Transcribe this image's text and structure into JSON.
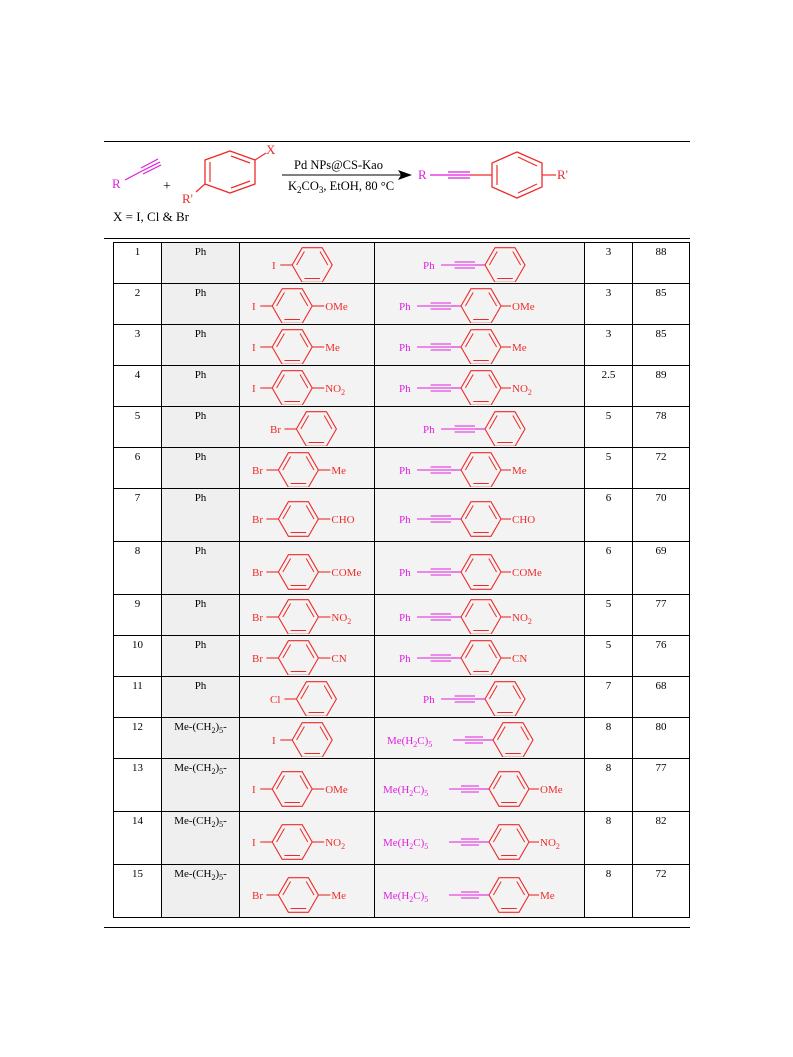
{
  "scheme": {
    "alkyne_label": "R",
    "plus": "+",
    "aryl_substituent": "R'",
    "halide_label": "X",
    "catalyst": "Pd NPs@CS-Kao",
    "conditions": {
      "base_prefix": "K",
      "base_sub1": "2",
      "base_mid": "CO",
      "base_sub2": "3",
      "rest": ", EtOH, 80 °C"
    },
    "product_r": "R",
    "product_r_prime": "R'",
    "x_definition": "X = I, Cl & Br"
  },
  "colors": {
    "red": "#ee2b2b",
    "magenta": "#e01fe0",
    "grey_cell": "#efefef"
  },
  "rows": [
    {
      "entry": "1",
      "alkyne": "Ph",
      "alkyne_sub": "",
      "alkyne_tail": "",
      "halogen": "I",
      "para": "",
      "para_sub": "",
      "prod_r": "Ph",
      "prod_sub": "",
      "prod_r_tail": "",
      "prod_para": "",
      "prod_para_sub": "",
      "time": "3",
      "yield": "88"
    },
    {
      "entry": "2",
      "alkyne": "Ph",
      "alkyne_sub": "",
      "alkyne_tail": "",
      "halogen": "I",
      "para": "OMe",
      "para_sub": "",
      "prod_r": "Ph",
      "prod_sub": "",
      "prod_r_tail": "",
      "prod_para": "OMe",
      "prod_para_sub": "",
      "time": "3",
      "yield": "85"
    },
    {
      "entry": "3",
      "alkyne": "Ph",
      "alkyne_sub": "",
      "alkyne_tail": "",
      "halogen": "I",
      "para": "Me",
      "para_sub": "",
      "prod_r": "Ph",
      "prod_sub": "",
      "prod_r_tail": "",
      "prod_para": "Me",
      "prod_para_sub": "",
      "time": "3",
      "yield": "85"
    },
    {
      "entry": "4",
      "alkyne": "Ph",
      "alkyne_sub": "",
      "alkyne_tail": "",
      "halogen": "I",
      "para": "NO",
      "para_sub": "2",
      "prod_r": "Ph",
      "prod_sub": "",
      "prod_r_tail": "",
      "prod_para": "NO",
      "prod_para_sub": "2",
      "time": "2.5",
      "yield": "89"
    },
    {
      "entry": "5",
      "alkyne": "Ph",
      "alkyne_sub": "",
      "alkyne_tail": "",
      "halogen": "Br",
      "para": "",
      "para_sub": "",
      "prod_r": "Ph",
      "prod_sub": "",
      "prod_r_tail": "",
      "prod_para": "",
      "prod_para_sub": "",
      "time": "5",
      "yield": "78"
    },
    {
      "entry": "6",
      "alkyne": "Ph",
      "alkyne_sub": "",
      "alkyne_tail": "",
      "halogen": "Br",
      "para": "Me",
      "para_sub": "",
      "prod_r": "Ph",
      "prod_sub": "",
      "prod_r_tail": "",
      "prod_para": "Me",
      "prod_para_sub": "",
      "time": "5",
      "yield": "72"
    },
    {
      "entry": "7",
      "alkyne": "Ph",
      "alkyne_sub": "",
      "alkyne_tail": "",
      "halogen": "Br",
      "para": "CHO",
      "para_sub": "",
      "prod_r": "Ph",
      "prod_sub": "",
      "prod_r_tail": "",
      "prod_para": "CHO",
      "prod_para_sub": "",
      "time": "6",
      "yield": "70"
    },
    {
      "entry": "8",
      "alkyne": "Ph",
      "alkyne_sub": "",
      "alkyne_tail": "",
      "halogen": "Br",
      "para": "COMe",
      "para_sub": "",
      "prod_r": "Ph",
      "prod_sub": "",
      "prod_r_tail": "",
      "prod_para": "COMe",
      "prod_para_sub": "",
      "time": "6",
      "yield": "69"
    },
    {
      "entry": "9",
      "alkyne": "Ph",
      "alkyne_sub": "",
      "alkyne_tail": "",
      "halogen": "Br",
      "para": "NO",
      "para_sub": "2",
      "prod_r": "Ph",
      "prod_sub": "",
      "prod_r_tail": "",
      "prod_para": "NO",
      "prod_para_sub": "2",
      "time": "5",
      "yield": "77"
    },
    {
      "entry": "10",
      "alkyne": "Ph",
      "alkyne_sub": "",
      "alkyne_tail": "",
      "halogen": "Br",
      "para": "CN",
      "para_sub": "",
      "prod_r": "Ph",
      "prod_sub": "",
      "prod_r_tail": "",
      "prod_para": "CN",
      "prod_para_sub": "",
      "time": "5",
      "yield": "76"
    },
    {
      "entry": "11",
      "alkyne": "Ph",
      "alkyne_sub": "",
      "alkyne_tail": "",
      "halogen": "Cl",
      "para": "",
      "para_sub": "",
      "prod_r": "Ph",
      "prod_sub": "",
      "prod_r_tail": "",
      "prod_para": "",
      "prod_para_sub": "",
      "time": "7",
      "yield": "68"
    },
    {
      "entry": "12",
      "alkyne": "Me-(CH",
      "alkyne_sub": "2",
      "alkyne_tail": ")5-",
      "halogen": "I",
      "para": "",
      "para_sub": "",
      "prod_r": "Me(H",
      "prod_sub": "2",
      "prod_r_tail": "C)5",
      "prod_para": "",
      "prod_para_sub": "",
      "time": "8",
      "yield": "80"
    },
    {
      "entry": "13",
      "alkyne": "Me-(CH",
      "alkyne_sub": "2",
      "alkyne_tail": ")5-",
      "halogen": "I",
      "para": "OMe",
      "para_sub": "",
      "prod_r": "Me(H",
      "prod_sub": "2",
      "prod_r_tail": "C)5",
      "prod_para": "OMe",
      "prod_para_sub": "",
      "time": "8",
      "yield": "77"
    },
    {
      "entry": "14",
      "alkyne": "Me-(CH",
      "alkyne_sub": "2",
      "alkyne_tail": ")5-",
      "halogen": "I",
      "para": "NO",
      "para_sub": "2",
      "prod_r": "Me(H",
      "prod_sub": "2",
      "prod_r_tail": "C)5",
      "prod_para": "NO",
      "prod_para_sub": "2",
      "time": "8",
      "yield": "82"
    },
    {
      "entry": "15",
      "alkyne": "Me-(CH",
      "alkyne_sub": "2",
      "alkyne_tail": ")5-",
      "halogen": "Br",
      "para": "Me",
      "para_sub": "",
      "prod_r": "Me(H",
      "prod_sub": "2",
      "prod_r_tail": "C)5",
      "prod_para": "Me",
      "prod_para_sub": "",
      "time": "8",
      "yield": "72"
    }
  ]
}
